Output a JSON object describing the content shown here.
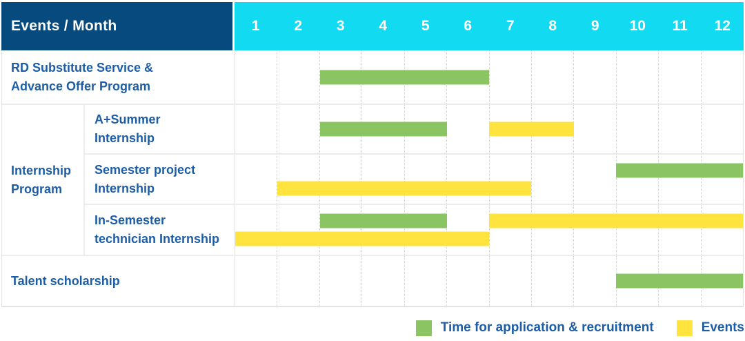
{
  "colors": {
    "navy": "#074a7d",
    "cyan": "#12daf0",
    "green": "#8bc462",
    "yellow": "#ffe33e",
    "text_blue": "#1d5da5",
    "grid_dotted": "#d2d2d2",
    "grid_solid": "#ececec"
  },
  "chart_data": {
    "type": "gantt",
    "unit": "month",
    "corner_label": "Events / Month",
    "months": [
      "1",
      "2",
      "3",
      "4",
      "5",
      "6",
      "7",
      "8",
      "9",
      "10",
      "11",
      "12"
    ],
    "x_range": [
      1,
      12
    ],
    "grid": true,
    "group_label_lines": [
      "Internship",
      "Program"
    ],
    "rows": [
      {
        "id": "rd-substitute",
        "label_lines": [
          "RD Substitute Service &",
          "Advance Offer Program"
        ],
        "lines": [
          [
            {
              "color": "green",
              "start": 3,
              "end": 6
            }
          ]
        ]
      },
      {
        "id": "a-plus-summer",
        "group": "Internship Program",
        "label_lines": [
          "A+Summer",
          "Internship"
        ],
        "lines": [
          [
            {
              "color": "green",
              "start": 3,
              "end": 5
            },
            {
              "color": "yellow",
              "start": 7,
              "end": 8
            }
          ]
        ]
      },
      {
        "id": "semester-project",
        "group": "Internship Program",
        "label_lines": [
          "Semester project",
          "Internship"
        ],
        "lines": [
          [
            {
              "color": "green",
              "start": 10,
              "end": 12
            }
          ],
          [
            {
              "color": "yellow",
              "start": 2,
              "end": 7
            }
          ]
        ]
      },
      {
        "id": "in-semester-technician",
        "group": "Internship Program",
        "label_lines": [
          "In-Semester",
          "technician Internship"
        ],
        "lines": [
          [
            {
              "color": "green",
              "start": 3,
              "end": 5
            },
            {
              "color": "yellow",
              "start": 7,
              "end": 12
            }
          ],
          [
            {
              "color": "yellow",
              "start": 1,
              "end": 6
            }
          ]
        ]
      },
      {
        "id": "talent-scholarship",
        "label_lines": [
          "Talent scholarship"
        ],
        "lines": [
          [
            {
              "color": "green",
              "start": 10,
              "end": 12
            }
          ]
        ]
      }
    ],
    "legend": {
      "position": "bottom-right",
      "items": [
        {
          "color": "green",
          "label": "Time for application & recruitment"
        },
        {
          "color": "yellow",
          "label": "Events"
        }
      ]
    }
  }
}
